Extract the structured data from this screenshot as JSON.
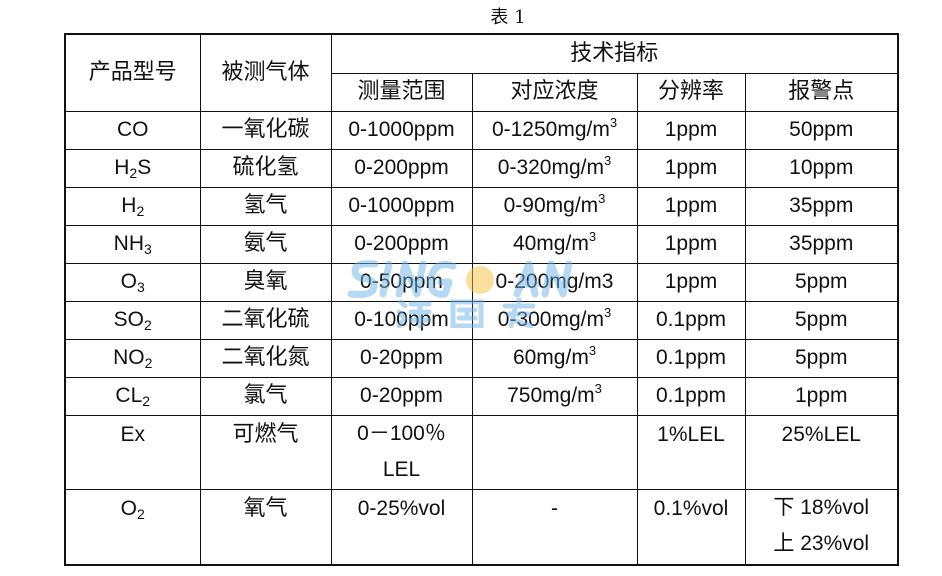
{
  "caption": "表 1",
  "headers": {
    "model": "产品型号",
    "gas": "被测气体",
    "tech": "技术指标",
    "range": "测量范围",
    "conc": "对应浓度",
    "resolution": "分辨率",
    "alarm": "报警点"
  },
  "rows": [
    {
      "code": {
        "base": "CO",
        "sub": "",
        "rest": ""
      },
      "gas": "一氧化碳",
      "range": "0-1000ppm",
      "conc": {
        "text": "0-1250mg/m",
        "sup": "3"
      },
      "resolution": "1ppm",
      "alarm": "50ppm"
    },
    {
      "code": {
        "base": "H",
        "sub": "2",
        "rest": "S"
      },
      "gas": "硫化氢",
      "range": "0-200ppm",
      "conc": {
        "text": "0-320mg/m",
        "sup": "3"
      },
      "resolution": "1ppm",
      "alarm": "10ppm"
    },
    {
      "code": {
        "base": "H",
        "sub": "2",
        "rest": ""
      },
      "gas": "氢气",
      "range": "0-1000ppm",
      "conc": {
        "text": "0-90mg/m",
        "sup": "3"
      },
      "resolution": "1ppm",
      "alarm": "35ppm"
    },
    {
      "code": {
        "base": "NH",
        "sub": "3",
        "rest": ""
      },
      "gas": "氨气",
      "range": "0-200ppm",
      "conc": {
        "text": "40mg/m",
        "sup": "3"
      },
      "resolution": "1ppm",
      "alarm": "35ppm"
    },
    {
      "code": {
        "base": "O",
        "sub": "3",
        "rest": ""
      },
      "gas": "臭氧",
      "range": "0-50ppm",
      "conc": {
        "text": "0-200mg/m3",
        "sup": ""
      },
      "resolution": "1ppm",
      "alarm": "5ppm"
    },
    {
      "code": {
        "base": "SO",
        "sub": "2",
        "rest": ""
      },
      "gas": "二氧化硫",
      "range": "0-100ppm",
      "conc": {
        "text": "0-300mg/m",
        "sup": "3"
      },
      "resolution": "0.1ppm",
      "alarm": "5ppm"
    },
    {
      "code": {
        "base": "NO",
        "sub": "2",
        "rest": ""
      },
      "gas": "二氧化氮",
      "range": "0-20ppm",
      "conc": {
        "text": "60mg/m",
        "sup": "3"
      },
      "resolution": "0.1ppm",
      "alarm": "5ppm"
    },
    {
      "code": {
        "base": "CL",
        "sub": "2",
        "rest": ""
      },
      "gas": "氯气",
      "range": "0-20ppm",
      "conc": {
        "text": "750mg/m",
        "sup": "3"
      },
      "resolution": "0.1ppm",
      "alarm": "1ppm"
    },
    {
      "code": {
        "base": "Ex",
        "sub": "",
        "rest": ""
      },
      "gas": "可燃气",
      "range": "0－100％ LEL",
      "conc": {
        "text": "",
        "sup": ""
      },
      "resolution": "1%LEL",
      "alarm": "25%LEL",
      "tall": true
    },
    {
      "code": {
        "base": "O",
        "sub": "2",
        "rest": ""
      },
      "gas": "氧气",
      "range": "0-25%vol",
      "conc": {
        "text": "-",
        "sup": ""
      },
      "resolution": "0.1%vol",
      "alarm": "下 18%vol 上 23%vol",
      "tall": true
    }
  ],
  "watermark": {
    "en": "SINGOAN",
    "zh": "深国安",
    "colors": [
      "#6fb4e8",
      "#f5c242"
    ]
  }
}
